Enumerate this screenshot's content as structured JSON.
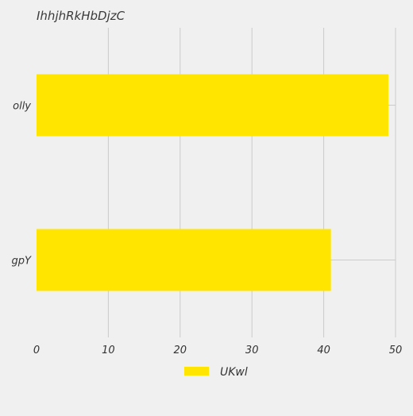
{
  "chart_data": {
    "type": "bar",
    "orientation": "horizontal",
    "title": "IhhjhRkHbDjzC",
    "xlabel": "",
    "ylabel": "",
    "categories": [
      "gpY",
      "olly"
    ],
    "series": [
      {
        "name": "UKwl",
        "values": [
          41,
          49
        ],
        "color": "#ffe500"
      }
    ],
    "xlim": [
      0,
      50
    ],
    "x_ticks": [
      0,
      10,
      20,
      30,
      40,
      50
    ],
    "grid": true,
    "legend_position": "bottom-center"
  }
}
